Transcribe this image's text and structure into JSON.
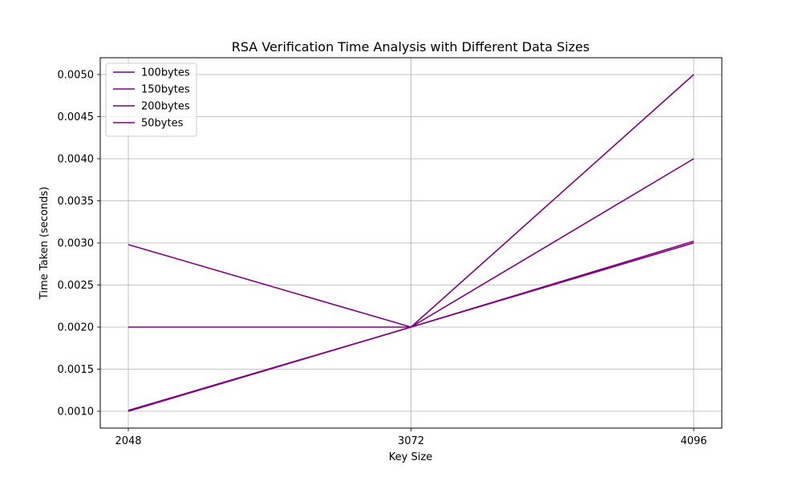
{
  "chart_data": {
    "type": "line",
    "title": "RSA Verification Time Analysis with Different Data Sizes",
    "xlabel": "Key Size",
    "ylabel": "Time Taken (seconds)",
    "x": [
      "2048",
      "3072",
      "4096"
    ],
    "xlim": [
      2048,
      4096
    ],
    "ylim": [
      0.0008,
      0.0052
    ],
    "yticks": [
      "0.0010",
      "0.0015",
      "0.0020",
      "0.0025",
      "0.0030",
      "0.0035",
      "0.0040",
      "0.0045",
      "0.0050"
    ],
    "grid": true,
    "legend_position": "top-left",
    "line_color": "#800080",
    "series": [
      {
        "name": "100bytes",
        "values": [
          0.00298,
          0.002,
          0.005
        ]
      },
      {
        "name": "150bytes",
        "values": [
          0.002,
          0.002,
          0.004
        ]
      },
      {
        "name": "200bytes",
        "values": [
          0.00101,
          0.002,
          0.00302
        ]
      },
      {
        "name": "50bytes",
        "values": [
          0.001,
          0.002,
          0.003
        ]
      }
    ]
  }
}
